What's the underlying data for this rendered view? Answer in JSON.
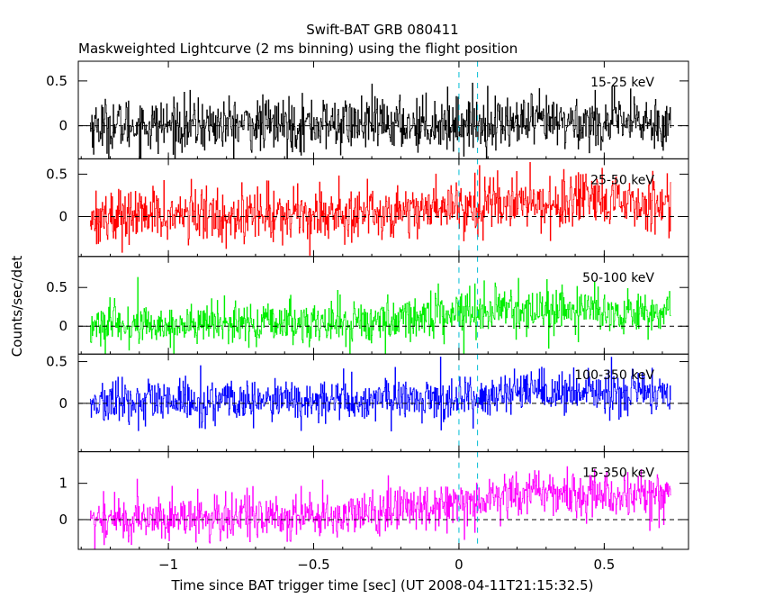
{
  "chart_data": {
    "type": "line",
    "title": "Swift-BAT GRB 080411",
    "subtitle": "Maskweighted Lightcurve (2 ms binning) using the flight position",
    "xlabel": "Time since BAT trigger time [sec] (UT 2008-04-11T21:15:32.5)",
    "ylabel": "Counts/sec/det",
    "xlim": [
      -1.31,
      0.79
    ],
    "xticks": [
      -1,
      -0.5,
      0,
      0.5
    ],
    "xtick_labels": [
      "−1",
      "−0.5",
      "0",
      "0.5"
    ],
    "data_range": [
      -1.27,
      0.73
    ],
    "marker_lines": [
      0,
      0.064
    ],
    "grid": false,
    "panels": [
      {
        "series": "15-25 keV",
        "color": "#000000",
        "ylim": [
          -0.37,
          0.72
        ],
        "yticks": [
          0,
          0.5
        ],
        "ytick_labels": [
          "0",
          "0.5"
        ],
        "profile": [
          [
            -1.27,
            0.0
          ],
          [
            -0.25,
            0.02
          ],
          [
            0.73,
            0.04
          ]
        ],
        "noise_sd": 0.15
      },
      {
        "series": "25-50 keV",
        "color": "#ff0000",
        "ylim": [
          -0.47,
          0.68
        ],
        "yticks": [
          0,
          0.5
        ],
        "ytick_labels": [
          "0",
          "0.5"
        ],
        "profile": [
          [
            -1.27,
            0.0
          ],
          [
            -0.25,
            0.05
          ],
          [
            0.1,
            0.17
          ],
          [
            0.73,
            0.15
          ]
        ],
        "noise_sd": 0.16
      },
      {
        "series": "50-100 keV",
        "color": "#00ee00",
        "ylim": [
          -0.36,
          0.9
        ],
        "yticks": [
          0,
          0.5
        ],
        "ytick_labels": [
          "0",
          "0.5"
        ],
        "profile": [
          [
            -1.27,
            0.0
          ],
          [
            -0.3,
            0.05
          ],
          [
            0.05,
            0.22
          ],
          [
            0.73,
            0.18
          ]
        ],
        "noise_sd": 0.14
      },
      {
        "series": "100-350 keV",
        "color": "#0000ff",
        "ylim": [
          -0.58,
          0.59
        ],
        "yticks": [
          0,
          0.5
        ],
        "ytick_labels": [
          "0",
          "0.5"
        ],
        "profile": [
          [
            -1.27,
            0.0
          ],
          [
            -0.2,
            0.04
          ],
          [
            0.3,
            0.12
          ],
          [
            0.73,
            0.12
          ]
        ],
        "noise_sd": 0.13
      },
      {
        "series": "15-350 keV",
        "color": "#ff00ff",
        "ylim": [
          -0.82,
          1.87
        ],
        "yticks": [
          0,
          1
        ],
        "ytick_labels": [
          "0",
          "1"
        ],
        "profile": [
          [
            -1.27,
            0.0
          ],
          [
            -0.35,
            0.12
          ],
          [
            -0.2,
            0.3
          ],
          [
            0.05,
            0.55
          ],
          [
            0.25,
            0.75
          ],
          [
            0.73,
            0.65
          ]
        ],
        "noise_sd": 0.32
      }
    ]
  }
}
